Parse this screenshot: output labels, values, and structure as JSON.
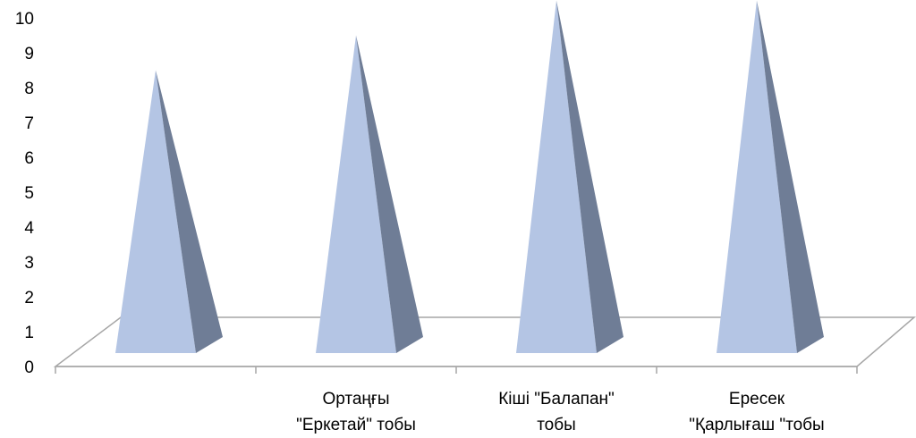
{
  "chart_data": {
    "type": "bar",
    "style": "3d-pyramid",
    "categories": [
      "",
      "Ортаңғы \"Еркетай\" тобы",
      "Кіші \"Балапан\" тобы",
      "Ересек \"Қарлығаш \"тобы"
    ],
    "category_lines": [
      [],
      [
        "Ортаңғы",
        "\"Еркетай\" тобы"
      ],
      [
        "Кіші \"Балапан\"",
        "тобы"
      ],
      [
        "Ересек",
        "\"Қарлығаш \"тобы"
      ]
    ],
    "values": [
      8.5,
      9.5,
      10.5,
      10.5
    ],
    "ylim": [
      0,
      10
    ],
    "yticks": [
      "0",
      "1",
      "2",
      "3",
      "4",
      "5",
      "6",
      "7",
      "8",
      "9",
      "10"
    ],
    "grid": false,
    "legend": "none",
    "colors": {
      "face_front": "#b4c5e4",
      "face_side": "#6f7d96",
      "floor_line": "#a6a6a6",
      "axis_line": "#a6a6a6"
    }
  }
}
